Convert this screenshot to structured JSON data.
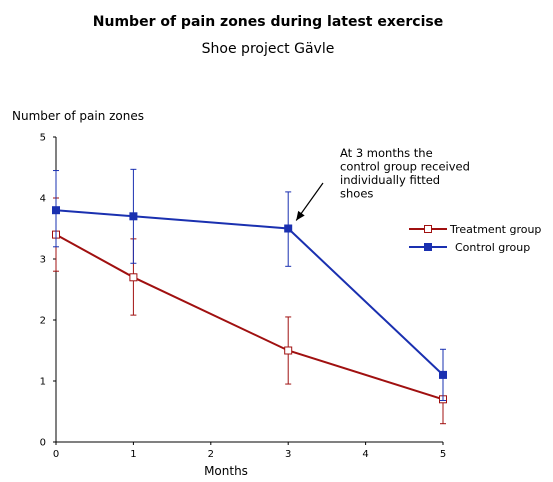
{
  "chart_data": {
    "type": "line",
    "title": "Number of pain zones during latest exercise",
    "subtitle": "Shoe project Gävle",
    "xlabel": "Months",
    "ylabel": "Number of pain zones",
    "xlim": [
      0,
      5
    ],
    "ylim": [
      0,
      5
    ],
    "x_ticks": [
      "0",
      "1",
      "2",
      "3",
      "4",
      "5"
    ],
    "y_ticks": [
      "0",
      "1",
      "2",
      "3",
      "4",
      "5"
    ],
    "grid": false,
    "legend_position": "right",
    "series": [
      {
        "name": "Treatment group",
        "color": "#a01010",
        "marker": "open-square",
        "points": [
          {
            "x": 0,
            "y": 3.4,
            "low": 2.8,
            "high": 4.0
          },
          {
            "x": 1,
            "y": 2.7,
            "low": 2.08,
            "high": 3.33
          },
          {
            "x": 3,
            "y": 1.5,
            "low": 0.95,
            "high": 2.05
          },
          {
            "x": 5,
            "y": 0.7,
            "low": 0.3,
            "high": 1.1
          }
        ]
      },
      {
        "name": "Control group",
        "color": "#1a30b0",
        "marker": "filled-square",
        "points": [
          {
            "x": 0,
            "y": 3.8,
            "low": 3.2,
            "high": 4.45
          },
          {
            "x": 1,
            "y": 3.7,
            "low": 2.93,
            "high": 4.47
          },
          {
            "x": 3,
            "y": 3.5,
            "low": 2.88,
            "high": 4.1
          },
          {
            "x": 5,
            "y": 1.1,
            "low": 0.68,
            "high": 1.52
          }
        ]
      }
    ],
    "annotation": {
      "lines": [
        "At 3 months the",
        "control group received",
        "individually fitted",
        "shoes"
      ],
      "arrow_target": {
        "x": 3,
        "y": 3.5
      }
    }
  }
}
